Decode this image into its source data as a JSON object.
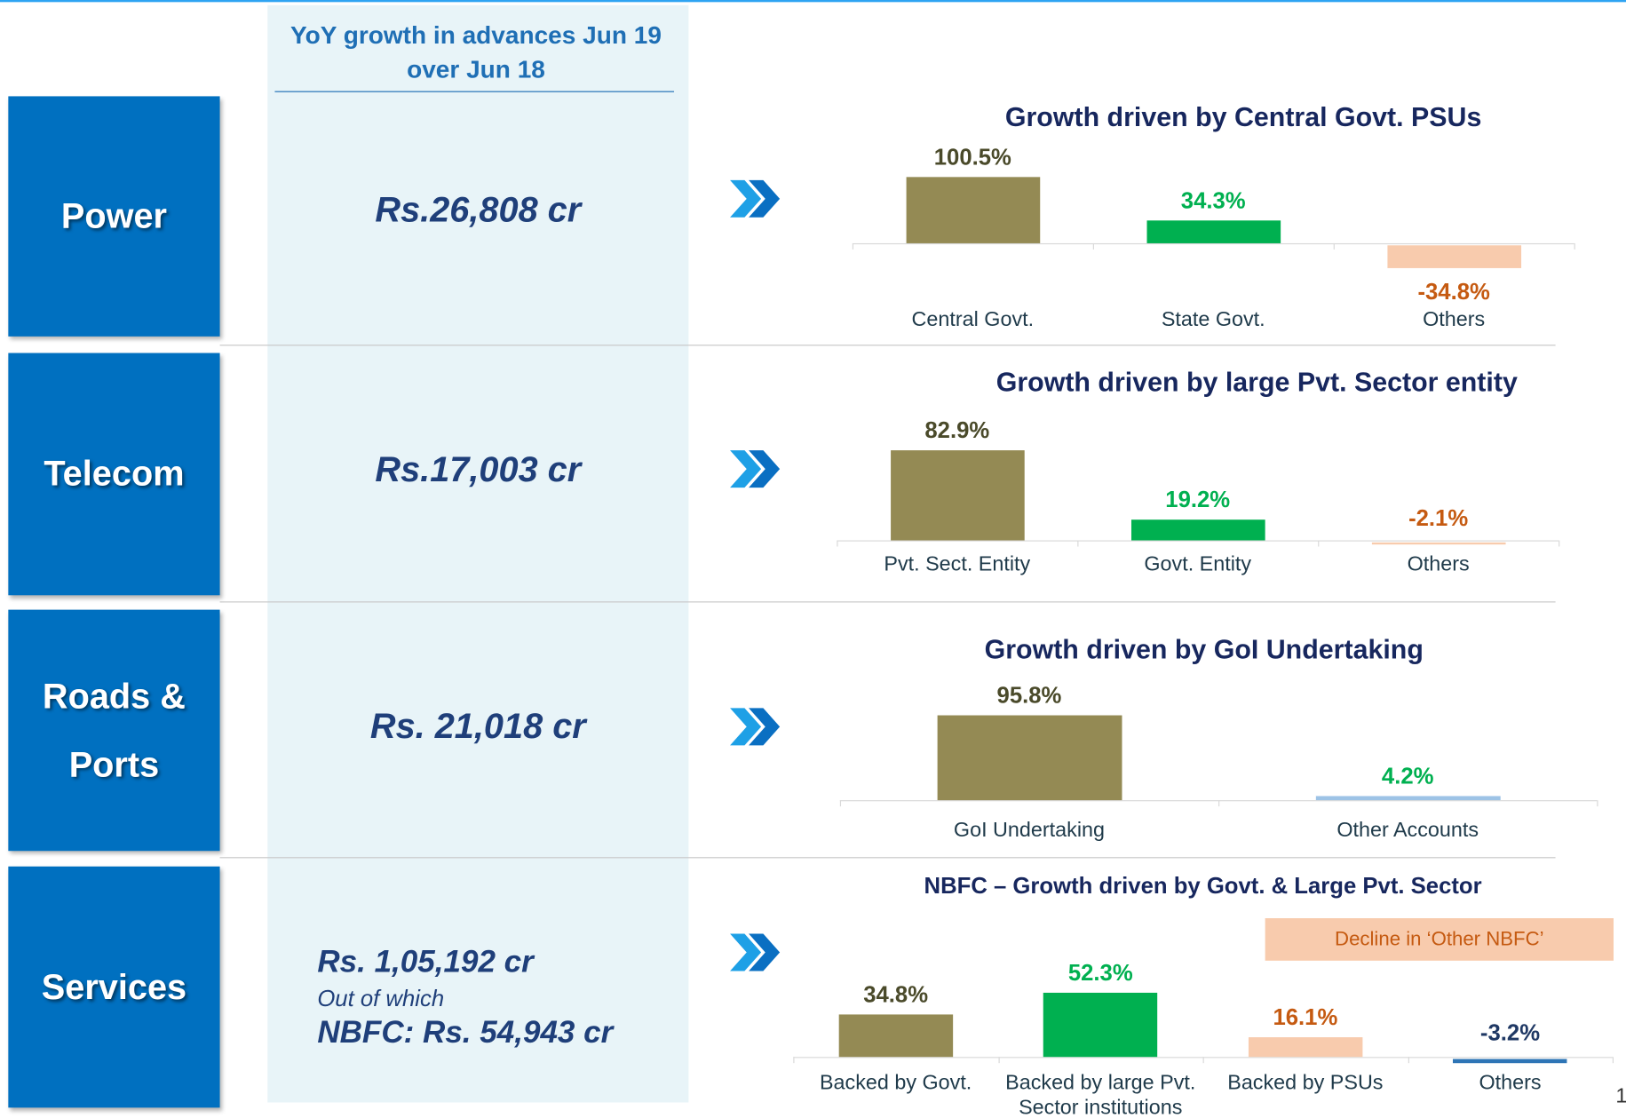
{
  "header": {
    "title": "YoY growth in advances Jun 19 over Jun 18"
  },
  "sectors": [
    {
      "name": "Power",
      "amount": "Rs.26,808 cr"
    },
    {
      "name": "Telecom",
      "amount": "Rs.17,003 cr"
    },
    {
      "name": "Roads & Ports",
      "amount": "Rs. 21,018 cr"
    },
    {
      "name": "Services",
      "amount": "Rs. 1,05,192 cr",
      "note": "Out of which",
      "nbfc": "NBFC: Rs. 54,943 cr"
    }
  ],
  "page_number": "1",
  "chart_data": [
    {
      "type": "bar",
      "title": "Growth driven by Central Govt. PSUs",
      "categories": [
        "Central Govt.",
        "State Govt.",
        "Others"
      ],
      "values": [
        100.5,
        34.3,
        -34.8
      ],
      "value_labels": [
        "100.5%",
        "34.3%",
        "-34.8%"
      ],
      "colors": [
        "#948a54",
        "#00b050",
        "#f8cbad"
      ],
      "label_colors": [
        "#4a4a2a",
        "#00b050",
        "#c55a11"
      ]
    },
    {
      "type": "bar",
      "title": "Growth driven by large Pvt. Sector entity",
      "categories": [
        "Pvt. Sect. Entity",
        "Govt. Entity",
        "Others"
      ],
      "values": [
        82.9,
        19.2,
        -2.1
      ],
      "value_labels": [
        "82.9%",
        "19.2%",
        "-2.1%"
      ],
      "colors": [
        "#948a54",
        "#00b050",
        "#f8cbad"
      ],
      "label_colors": [
        "#4a4a2a",
        "#00b050",
        "#c55a11"
      ]
    },
    {
      "type": "bar",
      "title": "Growth driven by GoI Undertaking",
      "categories": [
        "GoI Undertaking",
        "Other Accounts"
      ],
      "values": [
        95.8,
        4.2
      ],
      "value_labels": [
        "95.8%",
        "4.2%"
      ],
      "colors": [
        "#948a54",
        "#9dc3e6"
      ],
      "label_colors": [
        "#4a4a2a",
        "#00b050"
      ]
    },
    {
      "type": "bar",
      "title": "NBFC – Growth driven by Govt. & Large Pvt. Sector",
      "annotation": "Decline in ‘Other NBFC’",
      "categories": [
        "Backed by Govt.",
        "Backed by large Pvt. Sector institutions",
        "Backed by PSUs",
        "Others"
      ],
      "values": [
        34.8,
        52.3,
        16.1,
        -3.2
      ],
      "value_labels": [
        "34.8%",
        "52.3%",
        "16.1%",
        "-3.2%"
      ],
      "colors": [
        "#948a54",
        "#00b050",
        "#f8cbad",
        "#2e75b6"
      ],
      "label_colors": [
        "#4a4a2a",
        "#00b050",
        "#c55a11",
        "#1f3864"
      ]
    }
  ]
}
